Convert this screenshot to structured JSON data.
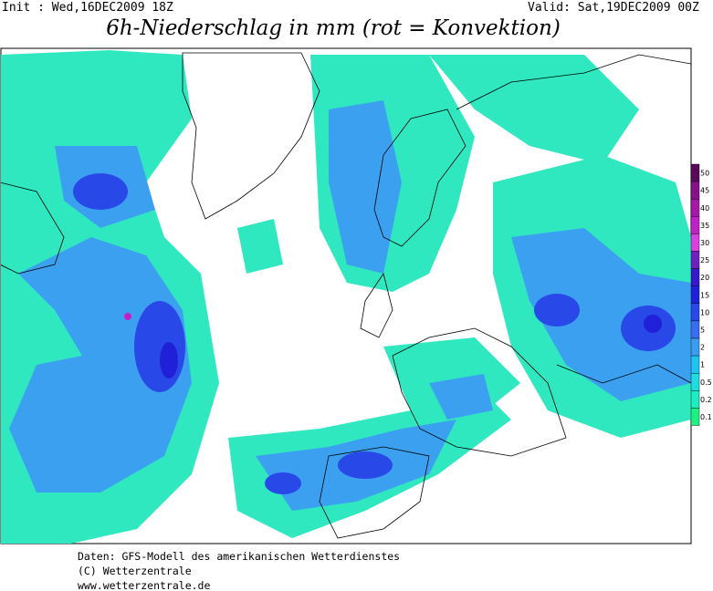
{
  "header": {
    "init": "Init : Wed,16DEC2009 18Z",
    "valid": "Valid: Sat,19DEC2009 00Z",
    "title": "6h-Niederschlag in mm (rot = Konvektion)"
  },
  "legend": {
    "levels": [
      50,
      45,
      40,
      35,
      30,
      25,
      20,
      15,
      10,
      5,
      2,
      1,
      0.5,
      0.2,
      0.1
    ],
    "colors": [
      "#5a0a5a",
      "#8a108a",
      "#a818a8",
      "#c020c8",
      "#d840e0",
      "#7020c0",
      "#3818c8",
      "#2020d8",
      "#2848e8",
      "#3c6cf0",
      "#3c9cf0",
      "#20c4f0",
      "#20dce0",
      "#20ecc4",
      "#20f080"
    ]
  },
  "footer": {
    "lines": [
      "Daten: GFS-Modell des amerikanischen Wetterdienstes",
      "(C) Wetterzentrale",
      "www.wetterzentrale.de"
    ]
  }
}
